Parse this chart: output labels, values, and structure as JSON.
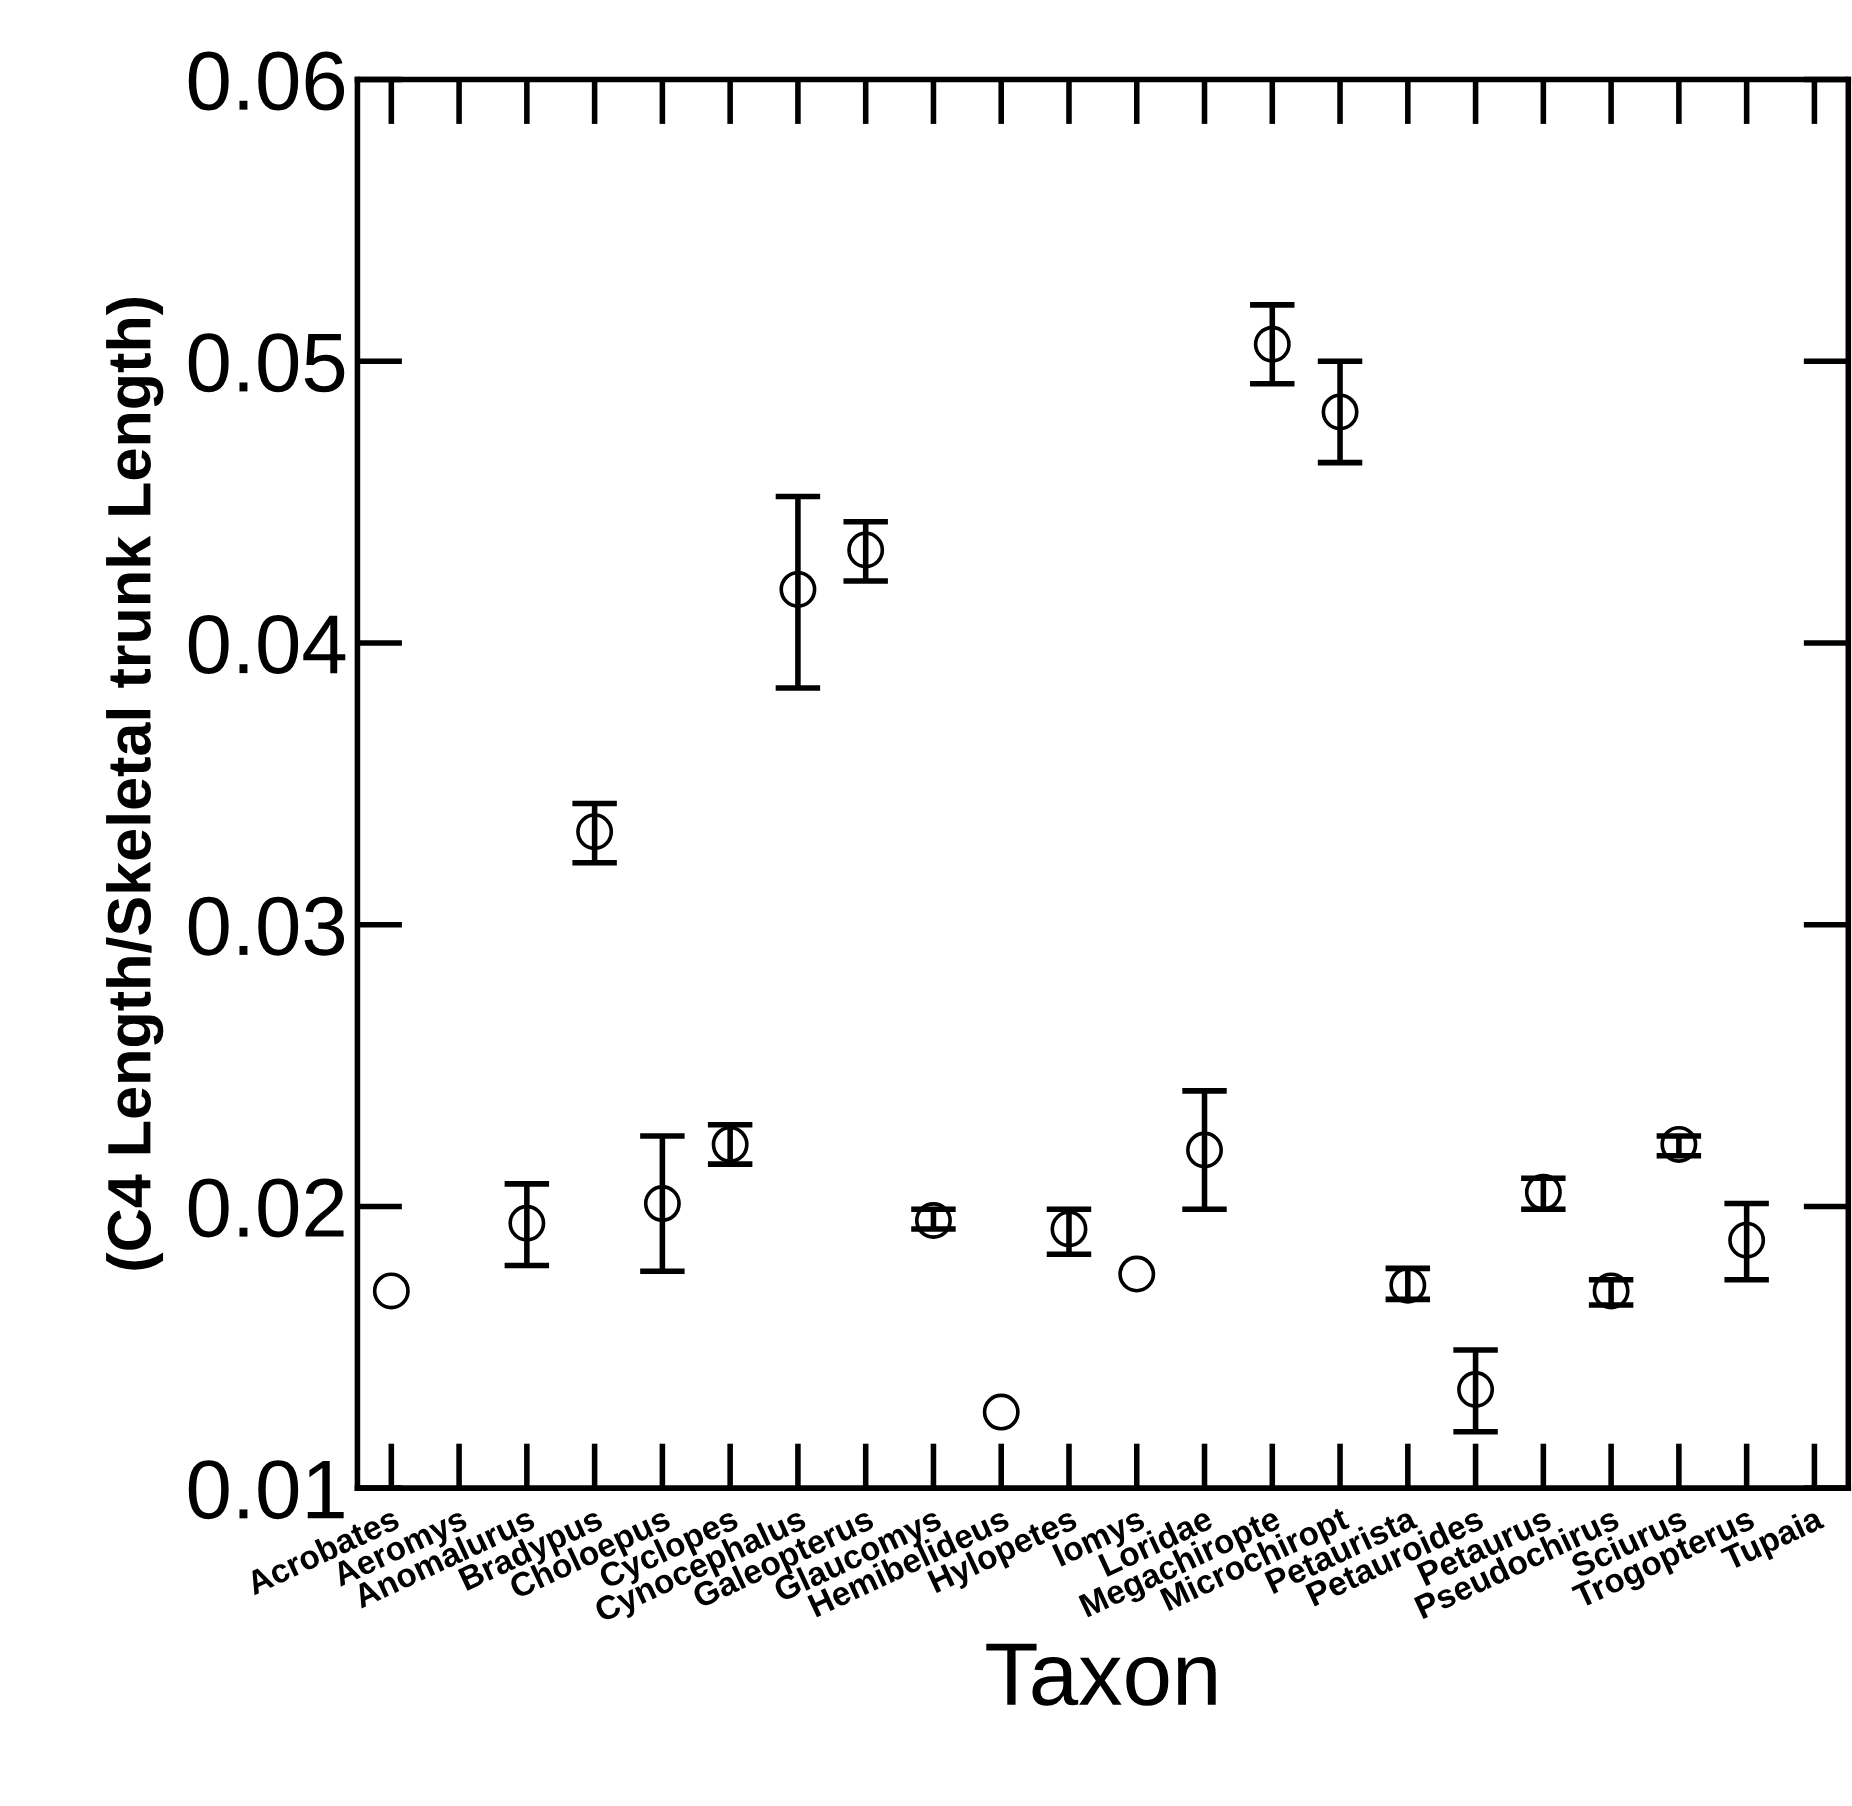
{
  "chart_data": {
    "type": "scatter",
    "xlabel": "Taxon",
    "ylabel": "(C4 Length/Skeletal trunk Length)",
    "categories": [
      "Acrobates",
      "Aeromys",
      "Anomalurus",
      "Bradypus",
      "Choloepus",
      "Cyclopes",
      "Cynocephalus",
      "Galeopterus",
      "Glaucomys",
      "Hemibelideus",
      "Hylopetes",
      "Iomys",
      "Loridae",
      "Megachiropte",
      "Microchiropt",
      "Petaurista",
      "Petauroides",
      "Petaurus",
      "Pseudochirus",
      "Sciurus",
      "Trogopterus",
      "Tupaia"
    ],
    "series": [
      {
        "color": "#000000",
        "values": [
          0.017,
          null,
          0.0194,
          0.0333,
          0.0201,
          0.0222,
          0.0419,
          0.0433,
          0.0195,
          0.0127,
          0.0192,
          0.0176,
          0.022,
          0.0506,
          0.0482,
          0.0172,
          0.0135,
          0.0205,
          0.017,
          0.0222,
          0.0188,
          null
        ],
        "errors": [
          null,
          null,
          [
            0.0179,
            0.0208
          ],
          [
            0.0322,
            0.0343
          ],
          [
            0.0177,
            0.0225
          ],
          [
            0.0215,
            0.0229
          ],
          [
            0.0384,
            0.0452
          ],
          [
            0.0422,
            0.0443
          ],
          [
            0.0192,
            0.0199
          ],
          null,
          [
            0.0183,
            0.0199
          ],
          null,
          [
            0.0199,
            0.0241
          ],
          [
            0.0492,
            0.052
          ],
          [
            0.0464,
            0.05
          ],
          [
            0.0167,
            0.0178
          ],
          [
            0.012,
            0.0149
          ],
          [
            0.0199,
            0.021
          ],
          [
            0.0165,
            0.0174
          ],
          [
            0.0218,
            0.0225
          ],
          [
            0.0174,
            0.0201
          ],
          null
        ]
      }
    ],
    "ylim": [
      0.01,
      0.06
    ],
    "yticks": [
      0.01,
      0.02,
      0.03,
      0.04,
      0.05,
      0.06
    ],
    "marker": "circle",
    "grid": false,
    "legend": false
  }
}
